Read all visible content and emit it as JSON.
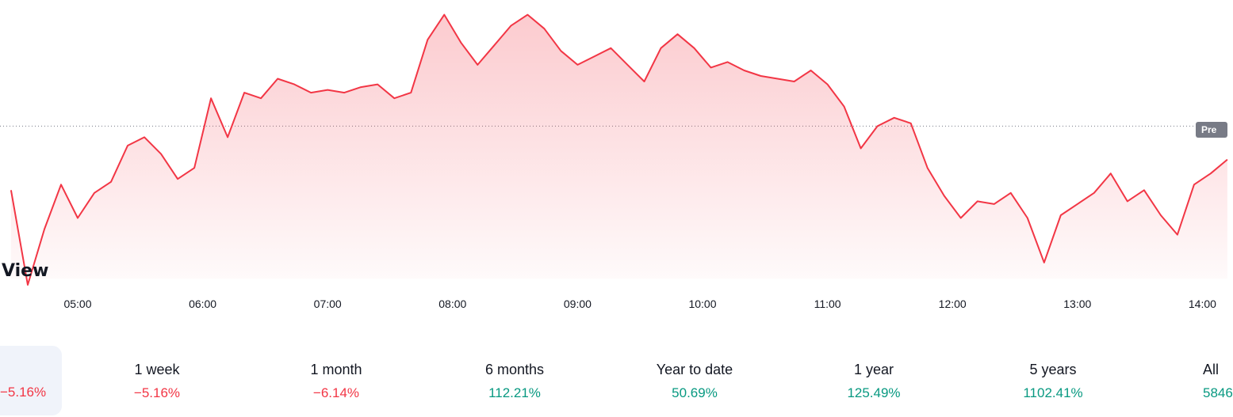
{
  "chart_data": {
    "type": "area",
    "title": "",
    "xlabel": "",
    "ylabel": "",
    "x_ticks": [
      "05:00",
      "06:00",
      "07:00",
      "08:00",
      "09:00",
      "10:00",
      "11:00",
      "12:00",
      "13:00",
      "14:00"
    ],
    "ylim": [
      0,
      100
    ],
    "previous_close": 57,
    "previous_close_label": "Pre",
    "line_color": "#f23645",
    "fill_color": "#f23645",
    "series": [
      {
        "x": [
          "04:28",
          "04:36",
          "04:44",
          "04:52",
          "05:00",
          "05:08",
          "05:16",
          "05:24",
          "05:32",
          "05:40",
          "05:48",
          "05:56",
          "06:04",
          "06:12",
          "06:20",
          "06:28",
          "06:36",
          "06:44",
          "06:52",
          "07:00",
          "07:08",
          "07:16",
          "07:24",
          "07:32",
          "07:40",
          "07:48",
          "07:56",
          "08:04",
          "08:12",
          "08:20",
          "08:28",
          "08:36",
          "08:44",
          "08:52",
          "09:00",
          "09:08",
          "09:16",
          "09:24",
          "09:32",
          "09:40",
          "09:48",
          "09:56",
          "10:04",
          "10:12",
          "10:20",
          "10:28",
          "10:36",
          "10:44",
          "10:52",
          "11:00",
          "11:08",
          "11:16",
          "11:24",
          "11:32",
          "11:40",
          "11:48",
          "11:56",
          "12:04",
          "12:12",
          "12:20",
          "12:28",
          "12:36",
          "12:44",
          "12:52",
          "13:00",
          "13:08",
          "13:16",
          "13:24",
          "13:32",
          "13:40",
          "13:48",
          "13:56",
          "14:04",
          "14:12"
        ],
        "values": [
          34,
          0,
          20,
          36,
          24,
          33,
          37,
          50,
          53,
          47,
          38,
          42,
          67,
          53,
          69,
          67,
          74,
          72,
          69,
          70,
          69,
          71,
          72,
          67,
          69,
          88,
          97,
          87,
          79,
          86,
          93,
          97,
          92,
          84,
          79,
          82,
          85,
          79,
          73,
          85,
          90,
          85,
          78,
          80,
          77,
          75,
          74,
          73,
          77,
          72,
          64,
          49,
          57,
          60,
          58,
          42,
          32,
          24,
          30,
          29,
          33,
          24,
          8,
          25,
          29,
          33,
          40,
          30,
          34,
          25,
          18,
          36,
          40,
          45
        ]
      }
    ]
  },
  "watermark": "View",
  "periods": {
    "active_value": "−5.16%",
    "items": [
      {
        "label": "1 week",
        "value": "−5.16%",
        "sign": "neg"
      },
      {
        "label": "1 month",
        "value": "−6.14%",
        "sign": "neg"
      },
      {
        "label": "6 months",
        "value": "112.21%",
        "sign": "pos"
      },
      {
        "label": "Year to date",
        "value": "50.69%",
        "sign": "pos"
      },
      {
        "label": "1 year",
        "value": "125.49%",
        "sign": "pos"
      },
      {
        "label": "5 years",
        "value": "1102.41%",
        "sign": "pos"
      }
    ],
    "all_label": "All",
    "all_value": "5846"
  }
}
